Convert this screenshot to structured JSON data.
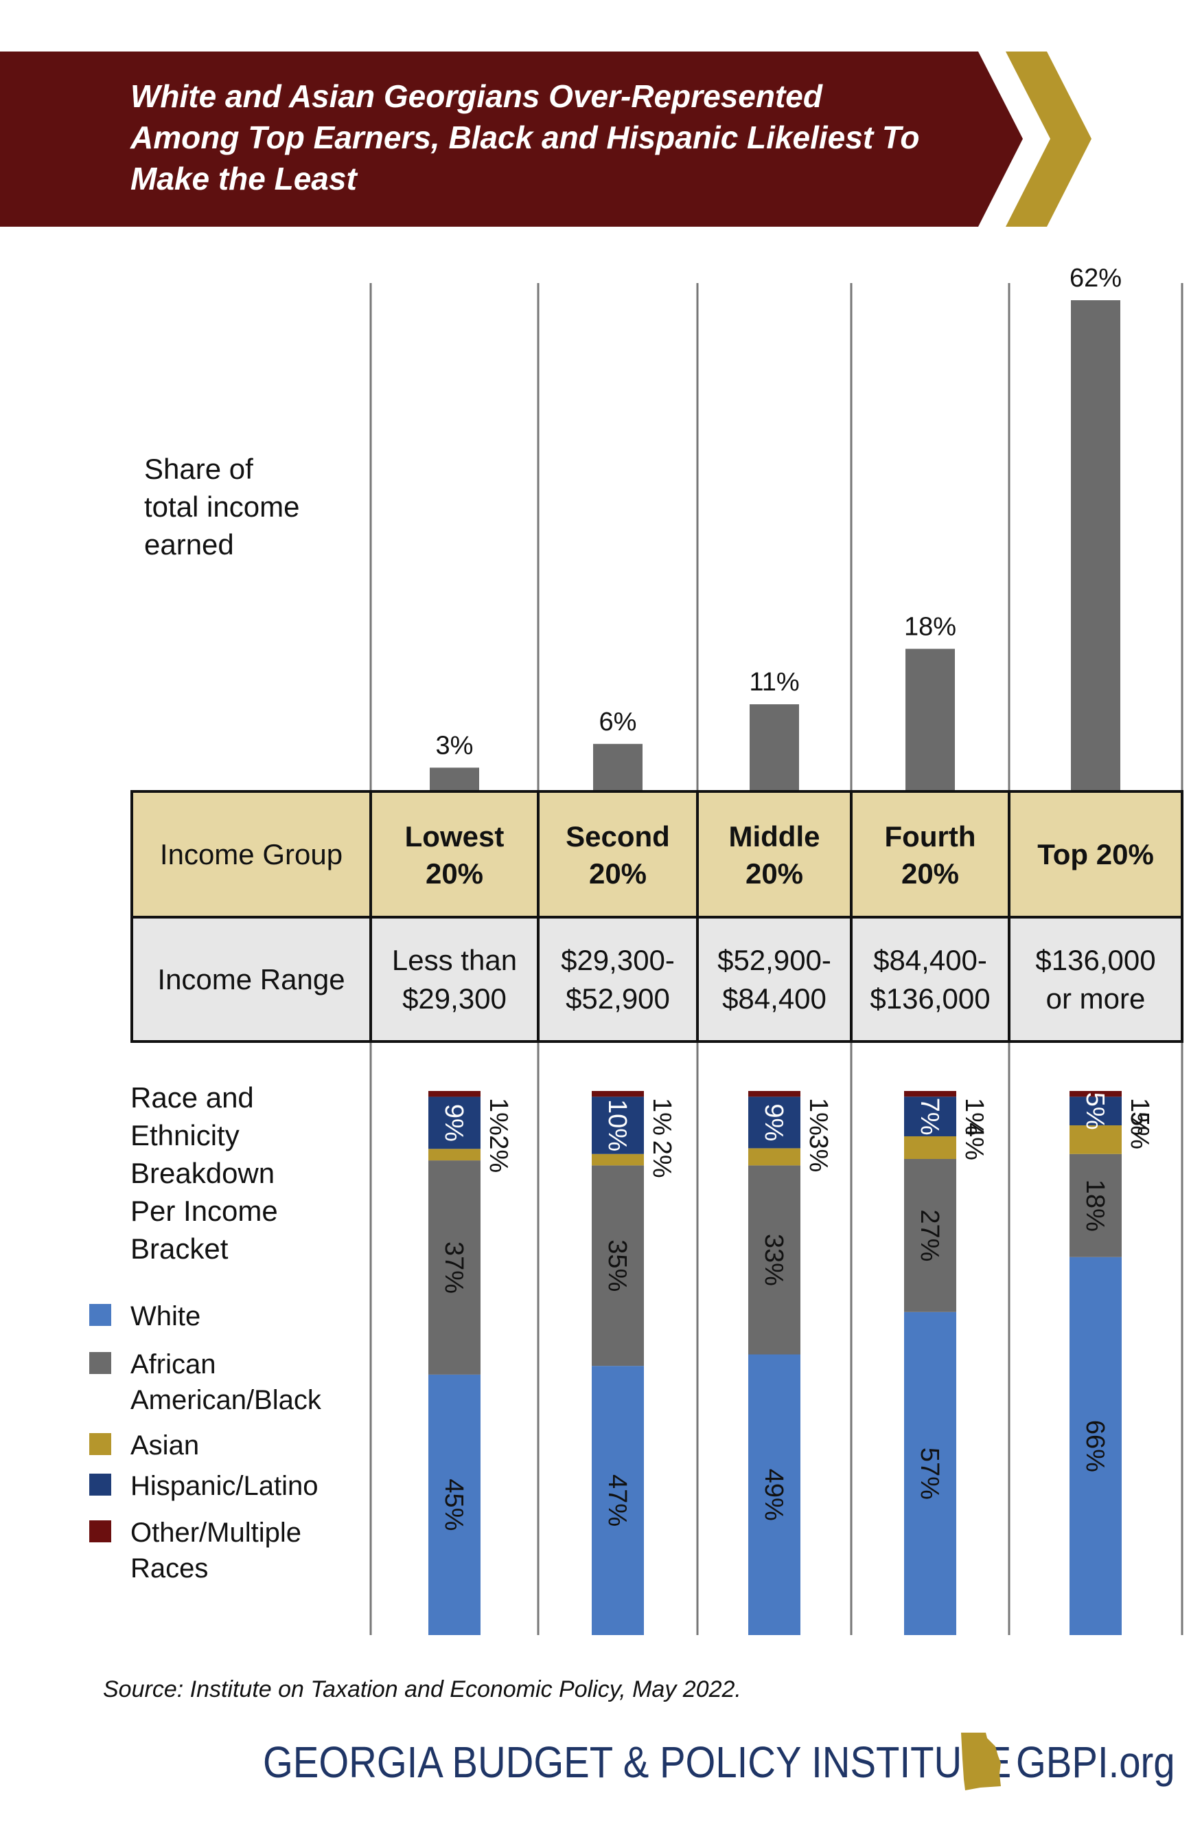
{
  "title_lines": [
    "White and Asian Georgians Over-Represented",
    "Among Top Earners, Black and Hispanic Likeliest To",
    "Make the Least"
  ],
  "colors": {
    "banner": "#5e1010",
    "banner_arrow": "#b5962c",
    "income_bar": "#6b6b6b",
    "header_row": "#e6d7a4",
    "range_row": "#e7e7e7",
    "white": "#4a7ac2",
    "black": "#6b6b6b",
    "asian": "#b5962c",
    "hispanic": "#1f3d78",
    "other": "#6b0f0f",
    "footer_text": "#1f3566"
  },
  "share_label_lines": [
    "Share of",
    "total income",
    "earned"
  ],
  "race_label_lines": [
    "Race and",
    "Ethnicity",
    "Breakdown",
    "Per Income",
    "Bracket"
  ],
  "table": {
    "header_label": "Income Group",
    "range_label": "Income Range",
    "groups": [
      {
        "name_lines": [
          "Lowest",
          "20%"
        ],
        "range_lines": [
          "Less than",
          "$29,300"
        ]
      },
      {
        "name_lines": [
          "Second",
          "20%"
        ],
        "range_lines": [
          "$29,300-",
          "$52,900"
        ]
      },
      {
        "name_lines": [
          "Middle",
          "20%"
        ],
        "range_lines": [
          "$52,900-",
          "$84,400"
        ]
      },
      {
        "name_lines": [
          "Fourth",
          "20%"
        ],
        "range_lines": [
          "$84,400-",
          "$136,000"
        ]
      },
      {
        "name_lines": [
          "Top 20%"
        ],
        "range_lines": [
          "$136,000",
          "or more"
        ]
      }
    ]
  },
  "chart_data": [
    {
      "type": "bar",
      "categories": [
        "Lowest 20%",
        "Second 20%",
        "Middle 20%",
        "Fourth 20%",
        "Top 20%"
      ],
      "values": [
        3,
        6,
        11,
        18,
        62
      ],
      "value_labels": [
        "3%",
        "6%",
        "11%",
        "18%",
        "62%"
      ],
      "title": "Share of total income earned",
      "ylim": [
        0,
        62
      ]
    },
    {
      "type": "bar",
      "stacked": true,
      "categories": [
        "Lowest 20%",
        "Second 20%",
        "Middle 20%",
        "Fourth 20%",
        "Top 20%"
      ],
      "title": "Race and Ethnicity Breakdown Per Income Bracket",
      "series": [
        {
          "name": "White",
          "values": [
            45,
            47,
            49,
            57,
            66
          ],
          "labels": [
            "45%",
            "47%",
            "49%",
            "57%",
            "66%"
          ]
        },
        {
          "name": "African American/Black",
          "values": [
            37,
            35,
            33,
            27,
            18
          ],
          "labels": [
            "37%",
            "35%",
            "33%",
            "27%",
            "18%"
          ]
        },
        {
          "name": "Asian",
          "values": [
            2,
            2,
            3,
            4,
            5
          ],
          "labels": [
            "2%",
            "2%",
            "3%",
            "4%",
            "5%"
          ]
        },
        {
          "name": "Hispanic/Latino",
          "values": [
            9,
            10,
            9,
            7,
            5
          ],
          "labels": [
            "9%",
            "10%",
            "9%",
            "7%",
            "5%"
          ]
        },
        {
          "name": "Other/Multiple Races",
          "values": [
            1,
            1,
            1,
            1,
            1
          ],
          "labels": [
            "1%",
            "1%",
            "1%",
            "1%",
            "1%"
          ]
        }
      ]
    }
  ],
  "legend": [
    {
      "label_lines": [
        "White"
      ],
      "color": "#4a7ac2"
    },
    {
      "label_lines": [
        "African",
        "American/Black"
      ],
      "color": "#6b6b6b"
    },
    {
      "label_lines": [
        "Asian"
      ],
      "color": "#b5962c"
    },
    {
      "label_lines": [
        "Hispanic/Latino"
      ],
      "color": "#1f3d78"
    },
    {
      "label_lines": [
        "Other/Multiple",
        "Races"
      ],
      "color": "#6b0f0f"
    }
  ],
  "source": "Source: Institute on Taxation and Economic Policy, May 2022.",
  "footer": {
    "org": "GEORGIA BUDGET & POLICY INSTITUTE",
    "site": "GBPI.org",
    "icon": "georgia-state-icon"
  }
}
